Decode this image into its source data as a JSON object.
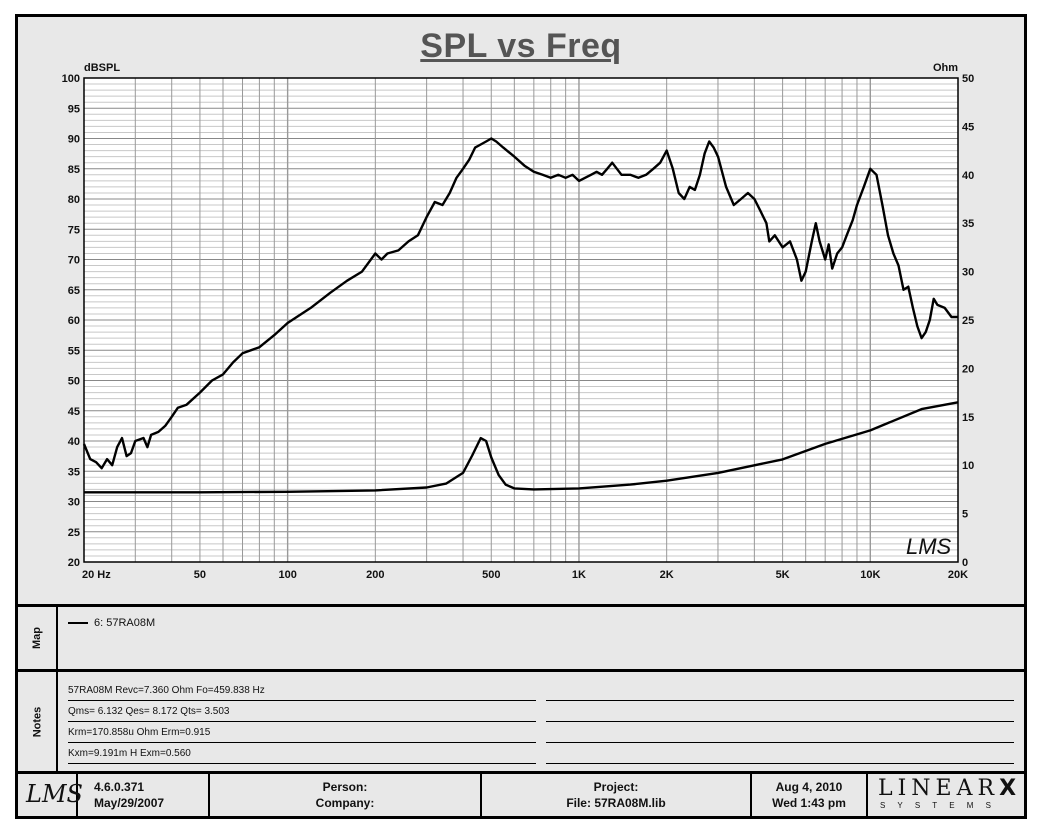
{
  "chart_data": {
    "type": "line",
    "title": "SPL vs Freq",
    "xscale": "log",
    "xlim": [
      20,
      20000
    ],
    "x_ticks": [
      {
        "v": 20,
        "label": "20  Hz"
      },
      {
        "v": 50,
        "label": "50"
      },
      {
        "v": 100,
        "label": "100"
      },
      {
        "v": 200,
        "label": "200"
      },
      {
        "v": 500,
        "label": "500"
      },
      {
        "v": 1000,
        "label": "1K"
      },
      {
        "v": 2000,
        "label": "2K"
      },
      {
        "v": 5000,
        "label": "5K"
      },
      {
        "v": 10000,
        "label": "10K"
      },
      {
        "v": 20000,
        "label": "20K"
      }
    ],
    "ylabel_left": "dBSPL",
    "ylim_left": [
      20,
      100
    ],
    "yticks_left": [
      20,
      25,
      30,
      35,
      40,
      45,
      50,
      55,
      60,
      65,
      70,
      75,
      80,
      85,
      90,
      95,
      100
    ],
    "ylabel_right": "Ohm",
    "ylim_right": [
      0,
      50
    ],
    "yticks_right": [
      0,
      5,
      10,
      15,
      20,
      25,
      30,
      35,
      40,
      45,
      50
    ],
    "grid": true,
    "watermark": "LMS",
    "series": [
      {
        "axis": "left",
        "points": [
          [
            20,
            39.5
          ],
          [
            21,
            37
          ],
          [
            22,
            36.5
          ],
          [
            23,
            35.5
          ],
          [
            24,
            37
          ],
          [
            25,
            36
          ],
          [
            26,
            39
          ],
          [
            27,
            40.5
          ],
          [
            28,
            37.5
          ],
          [
            29,
            38
          ],
          [
            30,
            40
          ],
          [
            32,
            40.5
          ],
          [
            33,
            39
          ],
          [
            34,
            41
          ],
          [
            36,
            41.5
          ],
          [
            38,
            42.5
          ],
          [
            40,
            44
          ],
          [
            42,
            45.5
          ],
          [
            45,
            46
          ],
          [
            50,
            48
          ],
          [
            55,
            50
          ],
          [
            60,
            51
          ],
          [
            65,
            53
          ],
          [
            70,
            54.5
          ],
          [
            80,
            55.5
          ],
          [
            90,
            57.5
          ],
          [
            100,
            59.5
          ],
          [
            120,
            62
          ],
          [
            140,
            64.5
          ],
          [
            160,
            66.5
          ],
          [
            180,
            68
          ],
          [
            200,
            71
          ],
          [
            210,
            70
          ],
          [
            220,
            71
          ],
          [
            240,
            71.5
          ],
          [
            260,
            73
          ],
          [
            280,
            74
          ],
          [
            300,
            77
          ],
          [
            320,
            79.5
          ],
          [
            340,
            79
          ],
          [
            360,
            81
          ],
          [
            380,
            83.5
          ],
          [
            400,
            85
          ],
          [
            420,
            86.5
          ],
          [
            440,
            88.5
          ],
          [
            460,
            89
          ],
          [
            480,
            89.5
          ],
          [
            500,
            90
          ],
          [
            520,
            89.5
          ],
          [
            550,
            88.5
          ],
          [
            600,
            87
          ],
          [
            650,
            85.5
          ],
          [
            700,
            84.5
          ],
          [
            750,
            84
          ],
          [
            800,
            83.5
          ],
          [
            850,
            84
          ],
          [
            900,
            83.5
          ],
          [
            950,
            84
          ],
          [
            1000,
            83
          ],
          [
            1050,
            83.5
          ],
          [
            1100,
            84
          ],
          [
            1150,
            84.5
          ],
          [
            1200,
            84
          ],
          [
            1250,
            85
          ],
          [
            1300,
            86
          ],
          [
            1350,
            85
          ],
          [
            1400,
            84
          ],
          [
            1500,
            84
          ],
          [
            1600,
            83.5
          ],
          [
            1700,
            84
          ],
          [
            1800,
            85
          ],
          [
            1900,
            86
          ],
          [
            2000,
            88
          ],
          [
            2100,
            85
          ],
          [
            2200,
            81
          ],
          [
            2300,
            80
          ],
          [
            2400,
            82
          ],
          [
            2500,
            81.5
          ],
          [
            2600,
            84
          ],
          [
            2700,
            87.5
          ],
          [
            2800,
            89.5
          ],
          [
            2900,
            88.5
          ],
          [
            3000,
            87
          ],
          [
            3200,
            82
          ],
          [
            3400,
            79
          ],
          [
            3600,
            80
          ],
          [
            3800,
            81
          ],
          [
            4000,
            80
          ],
          [
            4200,
            78
          ],
          [
            4400,
            76
          ],
          [
            4500,
            73
          ],
          [
            4700,
            74
          ],
          [
            5000,
            72
          ],
          [
            5300,
            73
          ],
          [
            5600,
            70
          ],
          [
            5800,
            66.5
          ],
          [
            6000,
            68
          ],
          [
            6300,
            73
          ],
          [
            6500,
            76
          ],
          [
            6700,
            73
          ],
          [
            7000,
            70
          ],
          [
            7200,
            72.5
          ],
          [
            7400,
            68.5
          ],
          [
            7700,
            71
          ],
          [
            8000,
            72
          ],
          [
            8300,
            74
          ],
          [
            8700,
            76.5
          ],
          [
            9000,
            79
          ],
          [
            9500,
            82
          ],
          [
            10000,
            85
          ],
          [
            10500,
            84
          ],
          [
            11000,
            79
          ],
          [
            11500,
            74
          ],
          [
            12000,
            71
          ],
          [
            12500,
            69
          ],
          [
            13000,
            65
          ],
          [
            13500,
            65.5
          ],
          [
            14000,
            62
          ],
          [
            14500,
            59
          ],
          [
            15000,
            57
          ],
          [
            15500,
            58
          ],
          [
            16000,
            60
          ],
          [
            16500,
            63.5
          ],
          [
            17000,
            62.5
          ],
          [
            18000,
            62
          ],
          [
            19000,
            60.5
          ],
          [
            20000,
            60.5
          ]
        ]
      },
      {
        "axis": "right",
        "points": [
          [
            20,
            7.2
          ],
          [
            50,
            7.2
          ],
          [
            100,
            7.25
          ],
          [
            200,
            7.4
          ],
          [
            300,
            7.7
          ],
          [
            350,
            8.1
          ],
          [
            400,
            9.2
          ],
          [
            430,
            11
          ],
          [
            460,
            12.8
          ],
          [
            480,
            12.5
          ],
          [
            500,
            10.8
          ],
          [
            530,
            9
          ],
          [
            560,
            8
          ],
          [
            600,
            7.6
          ],
          [
            700,
            7.5
          ],
          [
            1000,
            7.6
          ],
          [
            1500,
            8
          ],
          [
            2000,
            8.4
          ],
          [
            3000,
            9.2
          ],
          [
            5000,
            10.6
          ],
          [
            7000,
            12.2
          ],
          [
            10000,
            13.6
          ],
          [
            15000,
            15.8
          ],
          [
            20000,
            16.5
          ]
        ]
      }
    ]
  },
  "map": {
    "label": "Map",
    "legend": "6: 57RA08M"
  },
  "notes": {
    "label": "Notes",
    "lines": [
      "57RA08M Revc=7.360 Ohm  Fo=459.838 Hz",
      "Qms= 6.132  Qes= 8.172  Qts= 3.503",
      "Krm=170.858u Ohm  Erm=0.915",
      "Kxm=9.191m H  Exm=0.560"
    ]
  },
  "footer": {
    "logo": "LMS",
    "version": "4.6.0.371",
    "version_date": "May/29/2007",
    "person_label": "Person:",
    "company_label": "Company:",
    "project_label": "Project:",
    "file_label": "File: 57RA08M.lib",
    "date": "Aug  4, 2010",
    "time": "Wed  1:43 pm",
    "brand": "LINEAR",
    "brand_x": "X",
    "brand_sub": "S Y S T E M S"
  }
}
